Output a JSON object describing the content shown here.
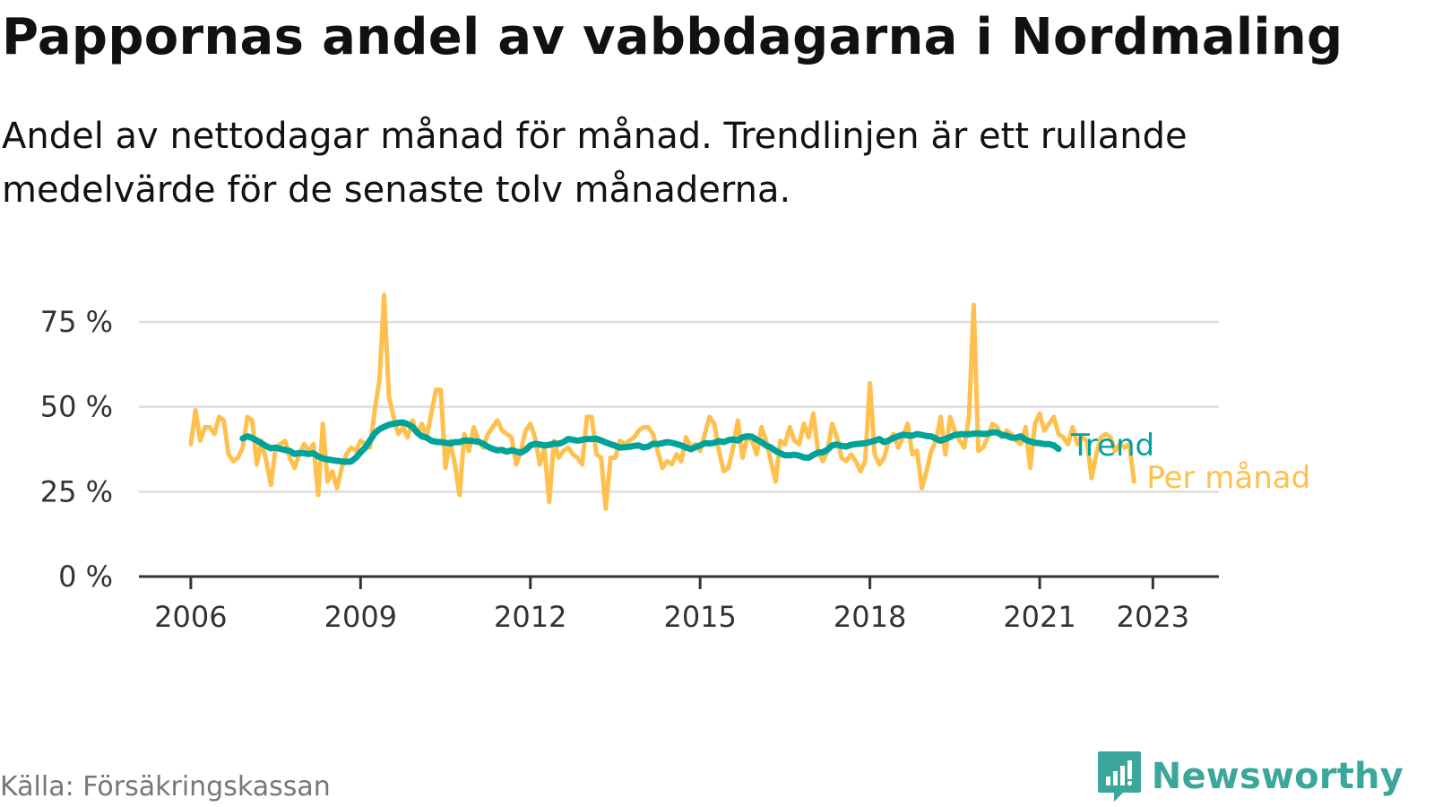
{
  "title": "Pappornas andel av vabbdagarna i Nordmaling",
  "subtitle": "Andel av nettodagar månad för månad. Trendlinjen är ett rullande medelvärde för de senaste tolv månaderna.",
  "source": "Källa: Försäkringskassan",
  "brand": {
    "name": "Newsworthy",
    "icon": "newsworthy-logo-icon",
    "color": "#3aa79a"
  },
  "chart_data": {
    "type": "line",
    "title": "Pappornas andel av vabbdagarna i Nordmaling",
    "xlabel": "",
    "ylabel": "",
    "ylim": [
      0,
      80
    ],
    "xlim": [
      "2005-02",
      "2024-03"
    ],
    "y_ticks": [
      {
        "value": 0,
        "label": "0 %"
      },
      {
        "value": 25,
        "label": "25 %"
      },
      {
        "value": 50,
        "label": "50 %"
      },
      {
        "value": 75,
        "label": "75 %"
      }
    ],
    "x_ticks": [
      {
        "value": "2006-01",
        "label": "2006"
      },
      {
        "value": "2009-01",
        "label": "2009"
      },
      {
        "value": "2012-01",
        "label": "2012"
      },
      {
        "value": "2015-01",
        "label": "2015"
      },
      {
        "value": "2018-01",
        "label": "2018"
      },
      {
        "value": "2021-01",
        "label": "2021"
      },
      {
        "value": "2023-01",
        "label": "2023"
      }
    ],
    "grid": "horizontal",
    "legend": "direct labels at end of lines",
    "series": [
      {
        "name": "Per månad",
        "color": "#ffc04d",
        "start": "2006-01",
        "values": [
          39,
          49,
          40,
          44,
          44,
          42,
          47,
          46,
          36,
          34,
          35,
          38,
          47,
          46,
          33,
          40,
          34,
          27,
          38,
          39,
          40,
          35,
          32,
          36,
          39,
          37,
          39,
          24,
          45,
          28,
          31,
          26,
          32,
          36,
          38,
          37,
          40,
          39,
          38,
          49,
          58,
          83,
          53,
          47,
          42,
          44,
          41,
          46,
          42,
          45,
          41,
          48,
          55,
          55,
          32,
          40,
          33,
          24,
          42,
          37,
          44,
          40,
          38,
          42,
          44,
          46,
          43,
          42,
          41,
          33,
          37,
          43,
          45,
          41,
          33,
          38,
          22,
          40,
          35,
          37,
          38,
          36,
          35,
          33,
          47,
          47,
          36,
          35,
          20,
          35,
          35,
          40,
          39,
          40,
          41,
          43,
          44,
          44,
          42,
          37,
          32,
          34,
          33,
          36,
          34,
          41,
          38,
          39,
          37,
          42,
          47,
          45,
          37,
          31,
          32,
          38,
          46,
          35,
          41,
          40,
          36,
          44,
          40,
          34,
          28,
          40,
          39,
          44,
          40,
          39,
          45,
          41,
          48,
          37,
          34,
          37,
          45,
          41,
          35,
          34,
          36,
          34,
          31,
          34,
          57,
          36,
          33,
          35,
          40,
          42,
          38,
          41,
          45,
          36,
          37,
          26,
          31,
          37,
          40,
          47,
          36,
          47,
          43,
          40,
          38,
          47,
          80,
          37,
          38,
          41,
          45,
          44,
          41,
          43,
          42,
          40,
          39,
          44,
          32,
          45,
          48,
          43,
          45,
          47,
          42,
          41,
          39,
          44,
          39,
          41,
          40,
          29,
          36,
          41,
          42,
          41,
          37,
          39,
          38,
          39,
          28
        ]
      },
      {
        "name": "Trend",
        "color": "#00a39a",
        "start": "2006-12",
        "values": [
          40.7,
          41.3,
          40.8,
          40.1,
          39.2,
          38.4,
          37.8,
          38.0,
          37.6,
          37.3,
          37.0,
          36.1,
          36.4,
          36.3,
          36.1,
          36.3,
          35.4,
          34.8,
          34.5,
          34.3,
          34.1,
          33.9,
          33.8,
          33.9,
          35.0,
          36.6,
          38.0,
          40.1,
          42.2,
          43.4,
          44.1,
          44.7,
          45.0,
          45.3,
          45.4,
          44.9,
          44.1,
          42.4,
          41.3,
          40.9,
          40.0,
          39.7,
          39.6,
          39.4,
          39.2,
          39.6,
          39.6,
          40.1,
          40.0,
          39.9,
          39.7,
          39.1,
          38.2,
          37.6,
          37.2,
          37.3,
          36.8,
          37.2,
          36.8,
          36.5,
          37.3,
          38.6,
          39.1,
          38.9,
          38.6,
          38.8,
          39.2,
          39.1,
          39.6,
          40.5,
          40.3,
          40.0,
          40.3,
          40.5,
          40.5,
          40.6,
          40.1,
          39.5,
          39.0,
          38.5,
          38.0,
          38.1,
          38.2,
          38.5,
          38.6,
          38.0,
          38.3,
          39.1,
          39.0,
          39.3,
          39.6,
          39.4,
          39.0,
          38.6,
          38.0,
          37.5,
          38.1,
          38.6,
          39.3,
          39.2,
          39.4,
          39.9,
          39.6,
          40.2,
          40.4,
          40.1,
          41.0,
          41.3,
          41.2,
          40.3,
          39.6,
          38.6,
          38.0,
          37.0,
          36.3,
          35.7,
          35.7,
          35.9,
          35.6,
          35.1,
          35.0,
          35.8,
          36.5,
          36.6,
          37.4,
          38.6,
          38.9,
          38.5,
          38.3,
          38.8,
          39.0,
          39.1,
          39.3,
          39.6,
          40.0,
          40.5,
          39.6,
          40.1,
          40.8,
          41.3,
          41.8,
          41.6,
          41.5,
          42.0,
          41.7,
          41.4,
          41.3,
          40.6,
          40.0,
          40.5,
          41.1,
          41.7,
          41.9,
          41.9,
          41.9,
          42.1,
          42.2,
          42.0,
          42.1,
          42.5,
          42.4,
          41.7,
          41.5,
          40.9,
          40.9,
          41.3,
          40.3,
          39.8,
          39.4,
          39.3,
          39.0,
          39.0,
          38.6,
          37.6
        ]
      }
    ]
  }
}
